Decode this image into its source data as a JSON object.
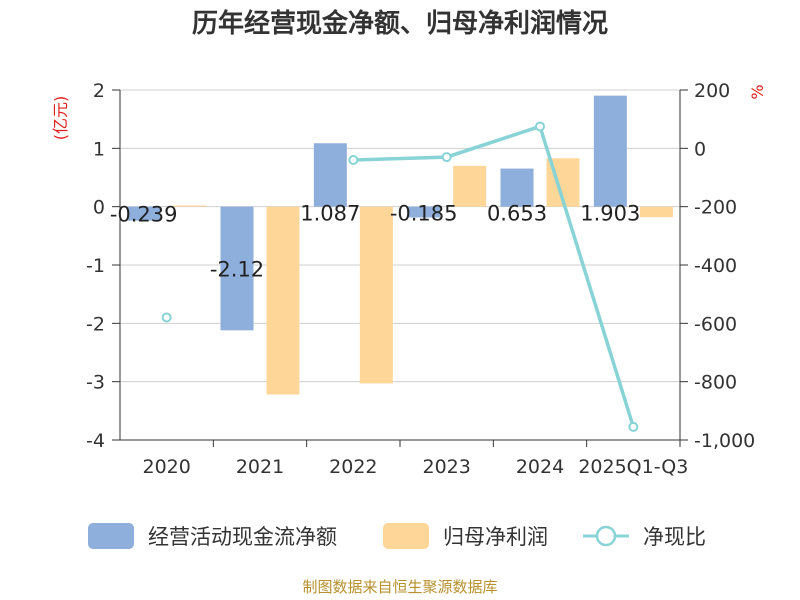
{
  "chart_data": {
    "type": "bar",
    "title": "历年经营现金净额、归母净利润情况",
    "ylabel_left": "(亿元)",
    "ylabel_right": "%",
    "categories": [
      "2020",
      "2021",
      "2022",
      "2023",
      "2024",
      "2025Q1-Q3"
    ],
    "ylim_left": [
      -4,
      2
    ],
    "ylim_right": [
      -1000,
      200
    ],
    "left_ticks": [
      "-4",
      "-3",
      "-2",
      "-1",
      "0",
      "1",
      "2"
    ],
    "right_ticks": [
      "-1,000",
      "-800",
      "-600",
      "-400",
      "-200",
      "0",
      "200"
    ],
    "grid": true,
    "legend_position": "bottom",
    "series": [
      {
        "name": "经营活动现金流净额",
        "kind": "bar",
        "axis": "left",
        "color": "#8eaedb",
        "values": [
          -0.239,
          -2.12,
          1.087,
          -0.185,
          0.653,
          1.903
        ],
        "labels": [
          "-0.239",
          "-2.12",
          "1.087",
          "-0.185",
          "0.653",
          "1.903"
        ]
      },
      {
        "name": "归母净利润",
        "kind": "bar",
        "axis": "left",
        "color": "#fdd698",
        "values": [
          0.02,
          -3.22,
          -3.03,
          0.7,
          0.83,
          -0.18
        ]
      },
      {
        "name": "净现比",
        "kind": "line",
        "axis": "right",
        "color": "#88d3d6",
        "values": [
          -580,
          null,
          -40,
          -30,
          75,
          -955
        ]
      }
    ]
  },
  "source_text": "制图数据来自恒生聚源数据库"
}
